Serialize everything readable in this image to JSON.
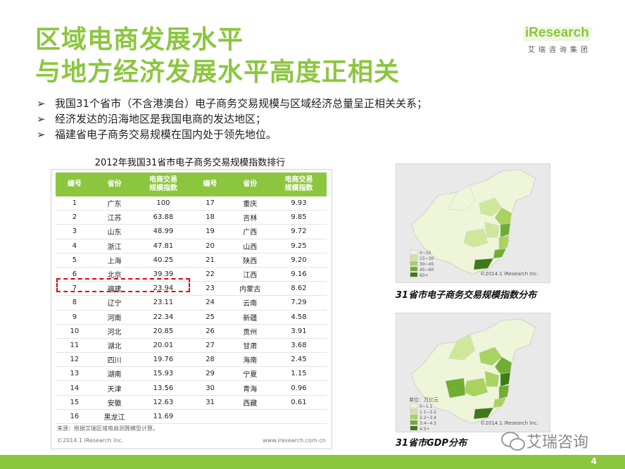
{
  "title": {
    "line1": "区域电商发展水平",
    "line2": "与地方经济发展水平高度正相关"
  },
  "logo": {
    "main": "iResearch",
    "sub": "艾瑞咨询集团"
  },
  "bullets": [
    "我国31个省市（不含港澳台）电子商务交易规模与区域经济总量呈正相关关系；",
    "经济发达的沿海地区是我国电商的发达地区；",
    "福建省电子商务交易规模在国内处于领先地位。"
  ],
  "bullet_marker": "➢",
  "table": {
    "title": "2012年我国31省市电子商务交易规模指数排行",
    "headers": [
      "编号",
      "省份",
      "电商交易\n规模指数",
      "编号",
      "省份",
      "电商交易\n规模指数"
    ],
    "rows": [
      [
        "1",
        "广东",
        "100",
        "17",
        "重庆",
        "9.93"
      ],
      [
        "2",
        "江苏",
        "63.88",
        "18",
        "吉林",
        "9.85"
      ],
      [
        "3",
        "山东",
        "48.99",
        "19",
        "广西",
        "9.72"
      ],
      [
        "4",
        "浙江",
        "47.81",
        "20",
        "山西",
        "9.25"
      ],
      [
        "5",
        "上海",
        "40.25",
        "21",
        "陕西",
        "9.20"
      ],
      [
        "6",
        "北京",
        "39.39",
        "22",
        "江西",
        "9.16"
      ],
      [
        "7",
        "福建",
        "23.94",
        "23",
        "内蒙古",
        "8.62"
      ],
      [
        "8",
        "辽宁",
        "23.11",
        "24",
        "云南",
        "7.29"
      ],
      [
        "9",
        "河南",
        "22.34",
        "25",
        "新疆",
        "4.58"
      ],
      [
        "10",
        "河北",
        "20.85",
        "26",
        "贵州",
        "3.91"
      ],
      [
        "11",
        "湖北",
        "20.01",
        "27",
        "甘肃",
        "3.68"
      ],
      [
        "12",
        "四川",
        "19.76",
        "28",
        "海南",
        "2.45"
      ],
      [
        "13",
        "湖南",
        "15.93",
        "29",
        "宁夏",
        "1.15"
      ],
      [
        "14",
        "天津",
        "13.56",
        "30",
        "青海",
        "0.96"
      ],
      [
        "15",
        "安徽",
        "12.63",
        "31",
        "西藏",
        "0.61"
      ],
      [
        "16",
        "黑龙江",
        "11.69",
        "",
        "",
        " "
      ]
    ],
    "source": "来源：根据艾瑞区域电商测算模型计算。",
    "copyright": "©2014.1 iResearch Inc.",
    "url": "www.iresearch.com.cn"
  },
  "map1": {
    "caption": "31省市电子商务交易规模指数分布",
    "legend": [
      "0~15",
      "15~30",
      "30~45",
      "45~60",
      "60+"
    ],
    "legend_colors": [
      "#eef5d8",
      "#cfe79a",
      "#a9d35e",
      "#6fae2f",
      "#3d7a19"
    ],
    "copyright": "©2014.1 iResearch Inc."
  },
  "map2": {
    "caption": "31省市GDP分布",
    "legend_title": "单位：万亿元",
    "legend": [
      "0~1.1",
      "1.1~2.2",
      "2.2~3.4",
      "3.4~4.5",
      "4.5+"
    ],
    "legend_colors": [
      "#eef5d8",
      "#cfe79a",
      "#a9d35e",
      "#6fae2f",
      "#3d7a19"
    ],
    "copyright": "©2014.1 iResearch Inc."
  },
  "wechat": {
    "text": "艾瑞咨询"
  },
  "page_number": "4",
  "colors": {
    "accent": "#8cc63f",
    "highlight": "#e00000"
  }
}
